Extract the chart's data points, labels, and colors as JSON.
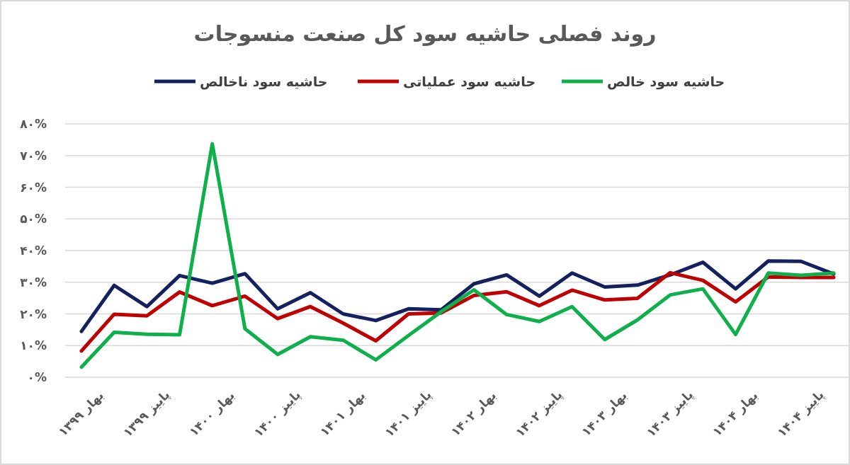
{
  "chart_data": {
    "type": "line",
    "title": "روند فصلی حاشیه سود کل صنعت منسوجات",
    "categories": [
      "بهار ۱۳۹۹",
      null,
      "پاییز ۱۳۹۹",
      null,
      "بهار ۱۴۰۰",
      null,
      "پاییز ۱۴۰۰",
      null,
      "بهار ۱۴۰۱",
      null,
      "پاییز ۱۴۰۱",
      null,
      "بهار ۱۴۰۲",
      null,
      "پاییز ۱۴۰۲",
      null,
      "بهار ۱۴۰۳",
      null,
      "پاییز ۱۴۰۳",
      null,
      "بهار ۱۴۰۴",
      null,
      "پاییز ۱۴۰۴",
      null
    ],
    "series": [
      {
        "name": "حاشیه سود ناخالص",
        "color": "#14215e",
        "values": [
          14.5,
          29,
          22.3,
          32.1,
          29.7,
          32.7,
          21.6,
          26.7,
          20,
          17.9,
          21.6,
          21.3,
          29.5,
          32.3,
          25.6,
          32.9,
          28.5,
          29.1,
          32.3,
          36.3,
          27.9,
          36.7,
          36.6,
          32.6
        ]
      },
      {
        "name": "حاشیه سود عملیاتی",
        "color": "#c00000",
        "values": [
          8.3,
          19.9,
          19.4,
          26.9,
          22.6,
          25.6,
          18.5,
          22.3,
          17.1,
          11.5,
          20,
          20.3,
          25.8,
          27,
          22.6,
          27.5,
          24.4,
          24.9,
          33,
          30.6,
          23.8,
          31.7,
          31.5,
          31.5
        ]
      },
      {
        "name": "حاشیه سود خالص",
        "color": "#0fb04b",
        "values": [
          3.2,
          14.2,
          13.6,
          13.4,
          73.7,
          15.3,
          7.2,
          12.8,
          11.7,
          5.5,
          13.2,
          20.7,
          27.6,
          19.8,
          17.6,
          22.3,
          11.9,
          18.1,
          26,
          27.9,
          13.5,
          32.9,
          32.2,
          32.9
        ]
      }
    ],
    "ylim": [
      0,
      80
    ],
    "yticks": [
      {
        "value": 0,
        "label": "۰%"
      },
      {
        "value": 10,
        "label": "۱۰%"
      },
      {
        "value": 20,
        "label": "۲۰%"
      },
      {
        "value": 30,
        "label": "۳۰%"
      },
      {
        "value": 40,
        "label": "۴۰%"
      },
      {
        "value": 50,
        "label": "۵۰%"
      },
      {
        "value": 60,
        "label": "۶۰%"
      },
      {
        "value": 70,
        "label": "۷۰%"
      },
      {
        "value": 80,
        "label": "۸۰%"
      }
    ],
    "grid": "y",
    "legend": "top",
    "marker": "none",
    "line_style": "solid"
  }
}
